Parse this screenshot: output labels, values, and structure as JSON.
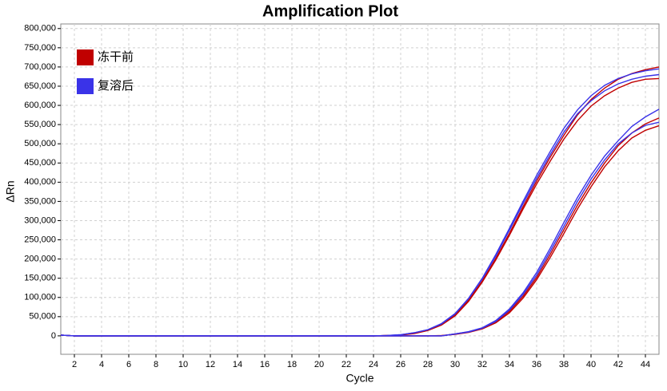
{
  "chart_data": {
    "type": "line",
    "title": "Amplification Plot",
    "x_label": "Cycle",
    "y_label": "ΔRn",
    "x": [
      1,
      2,
      3,
      4,
      5,
      6,
      7,
      8,
      9,
      10,
      11,
      12,
      13,
      14,
      15,
      16,
      17,
      18,
      19,
      20,
      21,
      22,
      23,
      24,
      25,
      26,
      27,
      28,
      29,
      30,
      31,
      32,
      33,
      34,
      35,
      36,
      37,
      38,
      39,
      40,
      41,
      42,
      43,
      44,
      45
    ],
    "xlim": [
      1,
      45
    ],
    "xticks": [
      2,
      4,
      6,
      8,
      10,
      12,
      14,
      16,
      18,
      20,
      22,
      24,
      26,
      28,
      30,
      32,
      34,
      36,
      38,
      40,
      42,
      44
    ],
    "ylim": [
      -48000,
      812000
    ],
    "yticks": [
      {
        "value": 0,
        "label": "0"
      },
      {
        "value": 50000,
        "label": "50,000"
      },
      {
        "value": 100000,
        "label": "100,000"
      },
      {
        "value": 150000,
        "label": "150,000"
      },
      {
        "value": 200000,
        "label": "200,000"
      },
      {
        "value": 250000,
        "label": "250,000"
      },
      {
        "value": 300000,
        "label": "300,000"
      },
      {
        "value": 350000,
        "label": "350,000"
      },
      {
        "value": 400000,
        "label": "400,000"
      },
      {
        "value": 450000,
        "label": "450,000"
      },
      {
        "value": 500000,
        "label": "500,000"
      },
      {
        "value": 550000,
        "label": "550,000"
      },
      {
        "value": 600000,
        "label": "600,000"
      },
      {
        "value": 650000,
        "label": "650,000"
      },
      {
        "value": 700000,
        "label": "700,000"
      },
      {
        "value": 750000,
        "label": "750,000"
      },
      {
        "value": 800000,
        "label": "800,000"
      }
    ],
    "grid": true,
    "legend": "upper left",
    "series": [
      {
        "name": "冻干前",
        "color": "#c00000",
        "lines": [
          [
            2000,
            0,
            0,
            0,
            0,
            0,
            0,
            0,
            0,
            0,
            0,
            0,
            0,
            0,
            0,
            0,
            0,
            0,
            0,
            0,
            0,
            0,
            0,
            0,
            1000,
            2000,
            6000,
            14000,
            28000,
            52000,
            90000,
            140000,
            198000,
            262000,
            330000,
            395000,
            455000,
            512000,
            560000,
            598000,
            625000,
            645000,
            660000,
            668000,
            670000
          ],
          [
            2000,
            0,
            0,
            0,
            0,
            0,
            0,
            0,
            0,
            0,
            0,
            0,
            0,
            0,
            0,
            0,
            0,
            0,
            0,
            0,
            0,
            0,
            0,
            0,
            1000,
            2000,
            7000,
            15000,
            30000,
            55000,
            93000,
            143000,
            202000,
            267000,
            336000,
            403000,
            465000,
            522000,
            575000,
            615000,
            645000,
            668000,
            683000,
            693000,
            700000
          ],
          [
            2000,
            0,
            0,
            0,
            0,
            0,
            0,
            0,
            0,
            0,
            0,
            0,
            0,
            0,
            0,
            0,
            0,
            0,
            0,
            0,
            0,
            0,
            0,
            0,
            0,
            0,
            0,
            0,
            1000,
            4000,
            9000,
            18000,
            34000,
            60000,
            98000,
            146000,
            204000,
            266000,
            330000,
            388000,
            440000,
            482000,
            515000,
            535000,
            547000
          ],
          [
            2000,
            0,
            0,
            0,
            0,
            0,
            0,
            0,
            0,
            0,
            0,
            0,
            0,
            0,
            0,
            0,
            0,
            0,
            0,
            0,
            0,
            0,
            0,
            0,
            0,
            0,
            0,
            0,
            0,
            5000,
            10000,
            20000,
            37000,
            64000,
            103000,
            152000,
            212000,
            276000,
            340000,
            398000,
            450000,
            495000,
            528000,
            552000,
            567000
          ]
        ]
      },
      {
        "name": "复溶后",
        "color": "#3a33e8",
        "lines": [
          [
            2000,
            0,
            0,
            0,
            0,
            0,
            0,
            0,
            0,
            0,
            0,
            0,
            0,
            0,
            0,
            0,
            0,
            0,
            0,
            0,
            0,
            0,
            0,
            0,
            1000,
            3000,
            8000,
            16000,
            32000,
            58000,
            98000,
            150000,
            212000,
            280000,
            350000,
            418000,
            480000,
            540000,
            588000,
            625000,
            652000,
            670000,
            682000,
            690000,
            695000
          ],
          [
            2000,
            0,
            0,
            0,
            0,
            0,
            0,
            0,
            0,
            0,
            0,
            0,
            0,
            0,
            0,
            0,
            0,
            0,
            0,
            0,
            0,
            0,
            0,
            0,
            1000,
            3000,
            8000,
            16000,
            31000,
            57000,
            97000,
            148000,
            208000,
            275000,
            344000,
            410000,
            472000,
            530000,
            578000,
            612000,
            638000,
            656000,
            668000,
            676000,
            680000
          ],
          [
            2000,
            0,
            0,
            0,
            0,
            0,
            0,
            0,
            0,
            0,
            0,
            0,
            0,
            0,
            0,
            0,
            0,
            0,
            0,
            0,
            0,
            0,
            0,
            0,
            0,
            0,
            0,
            0,
            0,
            5000,
            11000,
            21000,
            40000,
            70000,
            112000,
            165000,
            228000,
            295000,
            360000,
            418000,
            468000,
            508000,
            545000,
            570000,
            590000
          ],
          [
            2000,
            0,
            0,
            0,
            0,
            0,
            0,
            0,
            0,
            0,
            0,
            0,
            0,
            0,
            0,
            0,
            0,
            0,
            0,
            0,
            0,
            0,
            0,
            0,
            0,
            0,
            0,
            0,
            0,
            5000,
            10000,
            20000,
            38000,
            67000,
            108000,
            158000,
            220000,
            285000,
            350000,
            408000,
            458000,
            500000,
            528000,
            548000,
            556000
          ]
        ]
      }
    ]
  }
}
